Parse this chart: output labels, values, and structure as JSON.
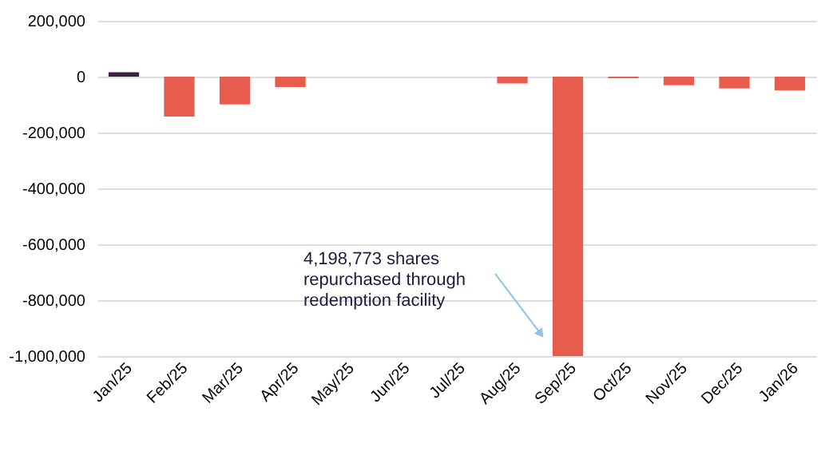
{
  "chart_data": {
    "type": "bar",
    "categories": [
      "Jan/25",
      "Feb/25",
      "Mar/25",
      "Apr/25",
      "May/25",
      "Jun/25",
      "Jul/25",
      "Aug/25",
      "Sep/25",
      "Oct/25",
      "Nov/25",
      "Dec/25",
      "Jan/26"
    ],
    "values": [
      16000,
      -143000,
      -99000,
      -37000,
      0,
      0,
      0,
      -24000,
      -1000000,
      -6000,
      -31000,
      -42000,
      -49000
    ],
    "colors": [
      "#3b2140",
      "#e85c4d",
      "#e85c4d",
      "#e85c4d",
      "#e85c4d",
      "#e85c4d",
      "#e85c4d",
      "#e85c4d",
      "#e85c4d",
      "#e85c4d",
      "#e85c4d",
      "#e85c4d",
      "#e85c4d"
    ],
    "ylim": [
      -1000000,
      200000
    ],
    "yticks": [
      {
        "value": -1000000,
        "label": "-1,000,000"
      },
      {
        "value": -800000,
        "label": "-800,000"
      },
      {
        "value": -600000,
        "label": "-600,000"
      },
      {
        "value": -400000,
        "label": "-400,000"
      },
      {
        "value": -200000,
        "label": "-200,000"
      },
      {
        "value": 0,
        "label": "0"
      },
      {
        "value": 200000,
        "label": "200,000"
      }
    ],
    "grid": "y",
    "annotations": [
      "4,198,773 shares repurchased through redemption facility"
    ]
  }
}
